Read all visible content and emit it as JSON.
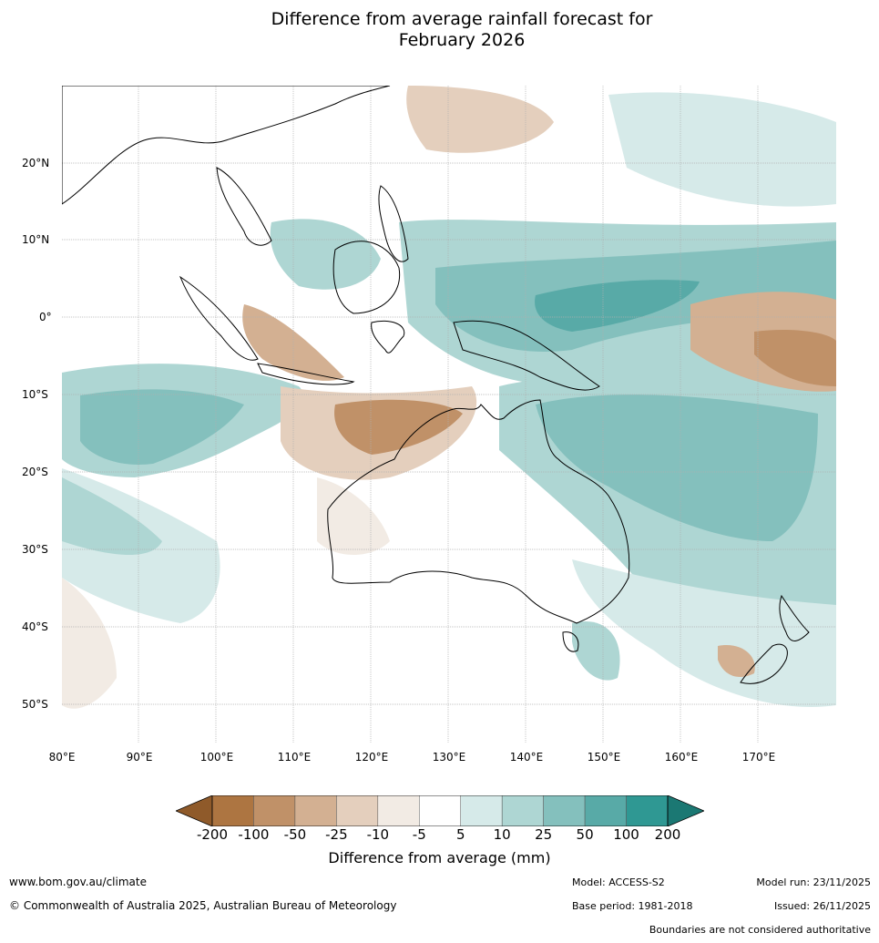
{
  "title_line1": "Difference from average rainfall forecast for",
  "title_line2": "February 2026",
  "lon_labels": [
    "80°E",
    "90°E",
    "100°E",
    "110°E",
    "120°E",
    "130°E",
    "140°E",
    "150°E",
    "160°E",
    "170°E"
  ],
  "lat_labels": [
    "20°N",
    "10°N",
    "0°",
    "10°S",
    "20°S",
    "30°S",
    "40°S",
    "50°S"
  ],
  "colorbar": {
    "ticks": [
      "-200",
      "-100",
      "-50",
      "-25",
      "-10",
      "-5",
      "5",
      "10",
      "25",
      "50",
      "100",
      "200"
    ],
    "colors": [
      "#8f5a2a",
      "#ad7541",
      "#c09168",
      "#d3b092",
      "#e4cfbd",
      "#f2ebe4",
      "#ffffff",
      "#d6eae9",
      "#aed6d3",
      "#84c0bd",
      "#58aaa7",
      "#2f9893",
      "#1b7873"
    ],
    "label": "Difference from average (mm)"
  },
  "footer": {
    "website": "www.bom.gov.au/climate",
    "copyright": "© Commonwealth of Australia 2025, Australian Bureau of Meteorology",
    "model": "Model: ACCESS-S2",
    "model_run": "Model run: 23/11/2025",
    "base_period": "Base period: 1981-2018",
    "issued": "Issued: 26/11/2025",
    "disclaimer": "Boundaries are not considered authoritative"
  }
}
